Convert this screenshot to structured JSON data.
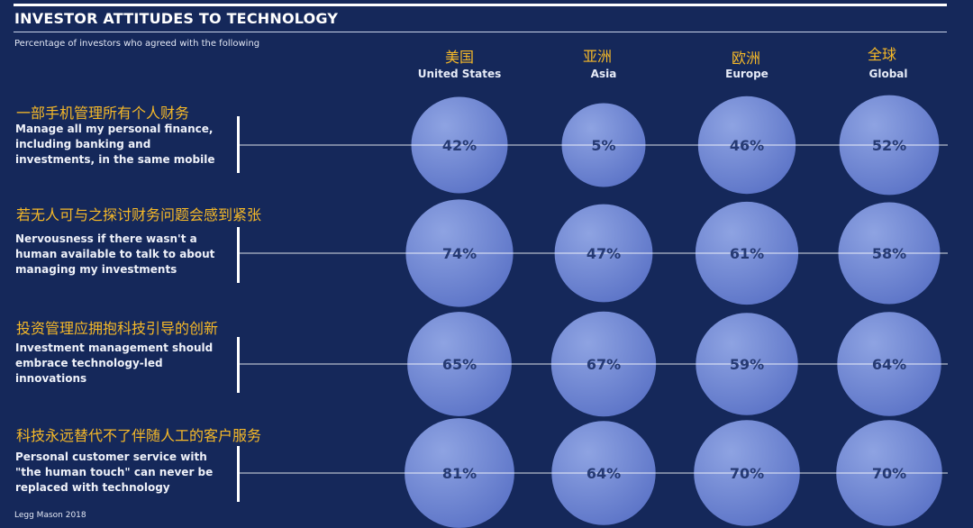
{
  "chart_data": {
    "type": "bubble-matrix",
    "title": "INVESTOR ATTITUDES TO TECHNOLOGY",
    "subtitle": "Percentage of investors who agreed with the following",
    "source": "Legg Mason 2018",
    "columns": [
      {
        "zh": "美国",
        "en": "United States"
      },
      {
        "zh": "亚洲",
        "en": "Asia"
      },
      {
        "zh": "欧洲",
        "en": "Europe"
      },
      {
        "zh": "全球",
        "en": "Global"
      }
    ],
    "rows": [
      {
        "zh": "一部手机管理所有个人财务",
        "en": "Manage all my personal finance, including banking and investments, in the same mobile",
        "values": [
          42,
          5,
          46,
          52
        ]
      },
      {
        "zh": "若无人可与之探讨财务问题会感到紧张",
        "en": "Nervousness if there wasn't a human available to talk to about managing my investments",
        "values": [
          74,
          47,
          61,
          58
        ]
      },
      {
        "zh": "投资管理应拥抱科技引导的创新",
        "en": "Investment management should embrace technology-led innovations",
        "values": [
          65,
          67,
          59,
          64
        ]
      },
      {
        "zh": "科技永远替代不了伴随人工的客户服务",
        "en": "Personal customer service with \"the human touch\" can never be replaced with technology",
        "values": [
          81,
          64,
          70,
          70
        ]
      }
    ],
    "value_suffix": "%",
    "colors": {
      "background": "#15285a",
      "bubble_light": "#8ea3e2",
      "bubble_dark": "#5a72c6",
      "chinese_text": "#f6b928",
      "line": "#ffffff"
    }
  }
}
